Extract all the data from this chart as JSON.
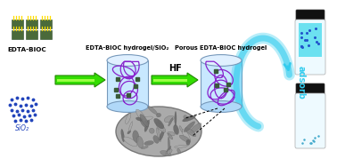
{
  "bg_color": "#ddeeff",
  "border_color": "#99bbdd",
  "labels": {
    "edta_bioc": "EDTA-BIOC",
    "sio2": "SiO₂",
    "hydrogel_sio2": "EDTA-BIOC hydrogel/SiO₂",
    "porous_hydrogel": "Porous EDTA-BIOC hydrogel",
    "hf": "HF",
    "adsorb": "adsorb"
  },
  "arrow_color": "#33dd00",
  "arrow_outline": "#228800",
  "arrow_inner": "#99ff44",
  "cyan_color": "#33ccee",
  "vial_top_color": "#111111",
  "vial_body_color": "#eefaff",
  "vial_liquid_color": "#55ddee",
  "biochar_color": "#4a6a3a",
  "biochar_top_color": "#ffdd00",
  "sio2_dot_color": "#2244bb",
  "network_color": "#8822cc",
  "cyl_face_color": "#c8e8ff",
  "cyl_top_color": "#b0d8f8",
  "cyl_edge_color": "#7799bb",
  "sem_color": "#999999",
  "sem_dark": "#666666",
  "sem_light": "#bbbbbb"
}
